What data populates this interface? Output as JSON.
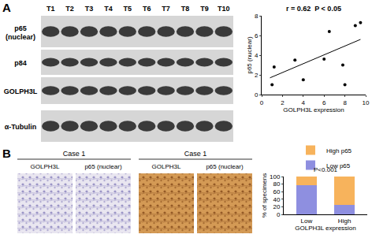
{
  "panel_labels": [
    "A",
    "B"
  ],
  "blot": {
    "lanes": [
      "T1",
      "T2",
      "T3",
      "T4",
      "T5",
      "T6",
      "T7",
      "T8",
      "T9",
      "T10"
    ],
    "rows": [
      "p65 (nuclear)",
      "p84",
      "GOLPH3L",
      "α-Tubulin"
    ]
  },
  "ihc": {
    "groups": [
      {
        "title": "Case 1",
        "images": [
          "GOLPH3L",
          "p65 (nuclear)"
        ]
      },
      {
        "title": "Case 1",
        "images": [
          "GOLPH3L",
          "p65 (nuclear)"
        ]
      }
    ]
  },
  "chart_data": [
    {
      "type": "scatter",
      "annotation": "r = 0.62  P < 0.05",
      "xlabel": "GOLPH3L expression",
      "ylabel": "p65 (nuclear)",
      "x": [
        1.0,
        1.2,
        3.2,
        4.0,
        6.0,
        6.5,
        7.8,
        8.0,
        9.0,
        9.5
      ],
      "y": [
        1.0,
        2.8,
        3.5,
        1.5,
        3.6,
        6.4,
        3.0,
        1.0,
        7.0,
        7.3
      ],
      "fit": {
        "x": [
          0.8,
          9.5
        ],
        "y": [
          1.7,
          5.6
        ]
      },
      "color": "#000000",
      "marker": "circle",
      "xlim": [
        0,
        10
      ],
      "xticks": [
        0,
        2,
        4,
        6,
        8,
        10
      ],
      "ylim": [
        0,
        8
      ],
      "yticks": [
        0,
        2,
        4,
        6,
        8
      ],
      "grid": false
    },
    {
      "type": "bar",
      "stacked": true,
      "legend": "top",
      "categories": [
        "Low",
        "High"
      ],
      "xlabel": "GOLPH3L expression",
      "ylabel": "% of specimens",
      "series": [
        {
          "name": "Low p65",
          "color": "#8e8fe0",
          "values": [
            77,
            25
          ]
        },
        {
          "name": "High p65",
          "color": "#f7b35c",
          "values": [
            23,
            75
          ]
        }
      ],
      "annotation": "P<0.001",
      "ylim": [
        0,
        100
      ],
      "yticks": [
        0,
        20,
        40,
        60,
        80,
        100
      ],
      "grid": false
    }
  ]
}
